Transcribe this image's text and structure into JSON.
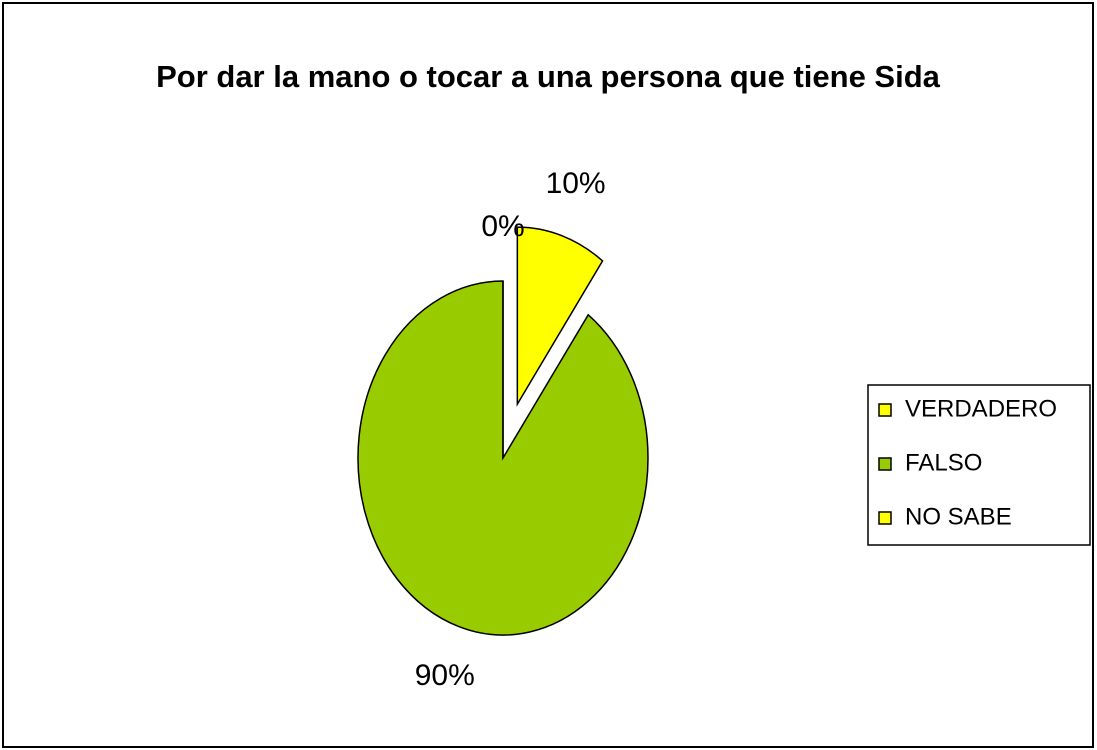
{
  "chart_data": {
    "type": "pie",
    "title": "Por dar la mano o tocar a una persona que tiene Sida",
    "categories": [
      "VERDADERO",
      "FALSO",
      "NO SABE"
    ],
    "values": [
      10,
      90,
      0
    ],
    "value_labels": [
      "10%",
      "90%",
      "0%"
    ],
    "colors": [
      "#ffff00",
      "#99cc00",
      "#ffff00"
    ],
    "exploded": [
      0
    ],
    "legend": "right"
  }
}
